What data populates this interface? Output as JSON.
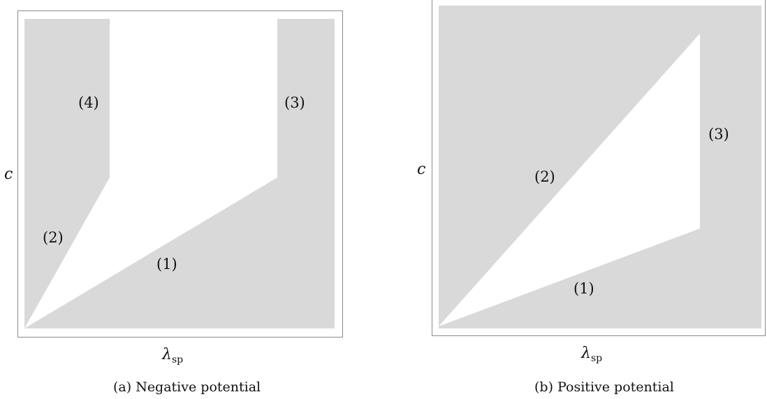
{
  "panel_a": {
    "y_axis_label": "c",
    "x_axis_symbol": "λ",
    "x_axis_subscript": "sp",
    "region_labels": [
      "(1)",
      "(2)",
      "(3)",
      "(4)"
    ],
    "caption": "(a) Negative potential"
  },
  "panel_b": {
    "y_axis_label": "c",
    "x_axis_symbol": "λ",
    "x_axis_subscript": "sp",
    "region_labels": [
      "(1)",
      "(2)",
      "(3)"
    ],
    "caption": "(b) Positive potential"
  },
  "colors": {
    "region_fill": "#d9d9d9",
    "frame": "#8a8a8a",
    "background": "#ffffff"
  }
}
